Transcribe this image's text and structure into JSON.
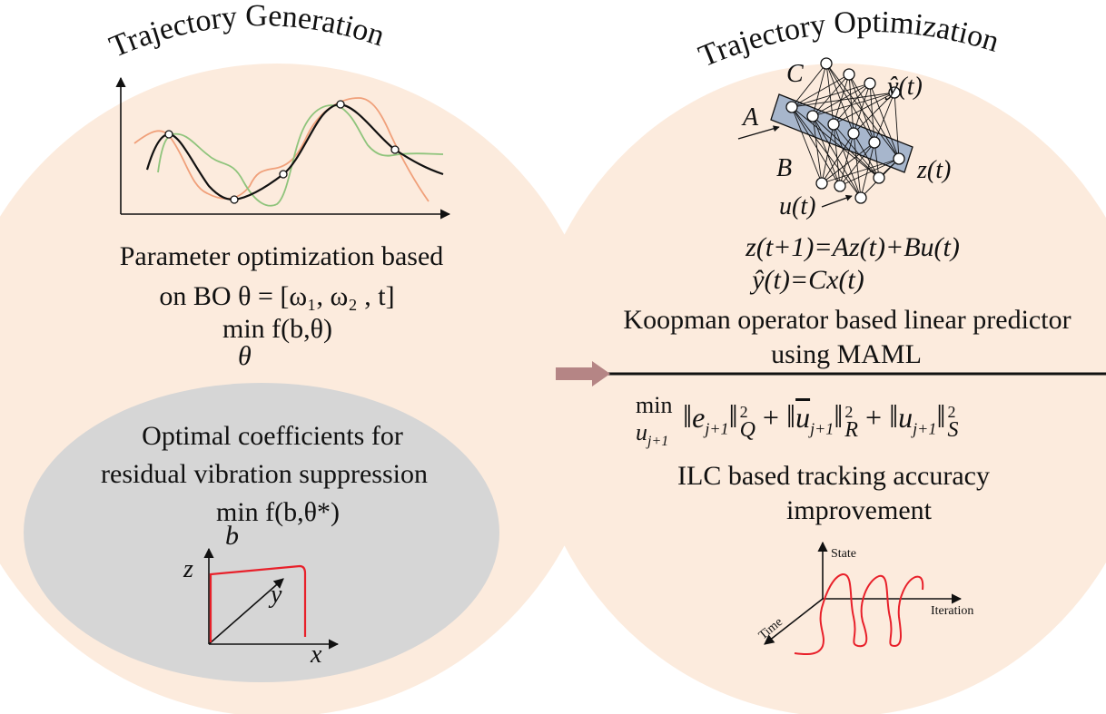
{
  "left_panel": {
    "title": "Trajectory Generation",
    "caption_line1": "Parameter optimization based",
    "caption_line2": "on BO θ = [ω₁, ω₂ , t]",
    "objective": "min f(b,θ)",
    "objective_sub": "θ",
    "inner": {
      "line1": "Optimal coefficients for",
      "line2": "residual vibration suppression",
      "objective": "min f(b,θ*)",
      "objective_sub": "b",
      "axis_z": "z",
      "axis_y": "y",
      "axis_x": "x"
    }
  },
  "right_panel": {
    "title": "Trajectory Optimization",
    "network_labels": {
      "c": "C",
      "a": "A",
      "b": "B",
      "y_hat": "ŷ(t)",
      "z": "z(t)",
      "u": "u(t)"
    },
    "eq1": "z(t+1)=Az(t)+Bu(t)",
    "eq2": "ŷ(t)=Cx(t)",
    "caption_line1": "Koopman operator based linear predictor",
    "caption_line2": "using MAML",
    "cost": {
      "min": "min",
      "min_sub": "u",
      "min_sub_idx": "j+1",
      "terms": [
        {
          "var": "e",
          "idx": "j+1",
          "weight": "Q",
          "power": "2",
          "bar": false
        },
        {
          "var": "u",
          "idx": "j+1",
          "weight": "R",
          "power": "2",
          "bar": true
        },
        {
          "var": "u",
          "idx": "j+1",
          "weight": "S",
          "power": "2",
          "bar": false
        }
      ],
      "plus": "+"
    },
    "ilc_line1": "ILC based tracking accuracy",
    "ilc_line2": "improvement",
    "ilc_plot": {
      "state": "State",
      "iteration": "Iteration",
      "time": "Time"
    }
  },
  "colors": {
    "blob": "#fcebdd",
    "inner_ellipse": "#d6d6d6",
    "arrow": "#b58585",
    "band": "#a7b6cc",
    "red": "#e8202a",
    "orange": "#f0a07a",
    "green": "#8fc47c"
  }
}
